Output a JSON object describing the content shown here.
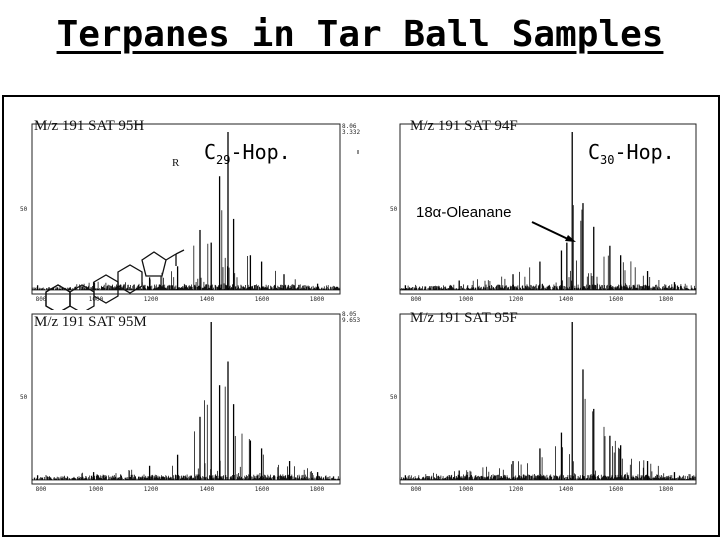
{
  "title": "Terpanes in Tar Ball Samples",
  "annotations": {
    "c29_prefix": "C",
    "c29_sub": "29",
    "c29_suffix": "-Hop.",
    "c30_prefix": "C",
    "c30_sub": "30",
    "c30_suffix": "-Hop.",
    "oleanane": "18α-Oleanane",
    "side_group_r": "R"
  },
  "panels": [
    {
      "id": "95H",
      "label": "M/z 191 SAT 95H",
      "y_mark": "50",
      "corner_top": "8.06",
      "corner_bottom": "3.332",
      "x_ticks": [
        "800",
        "1000",
        "1200",
        "1400",
        "1600",
        "1800"
      ]
    },
    {
      "id": "94F",
      "label": "M/z 191 SAT 94F",
      "y_mark": "50",
      "corner_top": "",
      "corner_bottom": "",
      "x_ticks": [
        "800",
        "1000",
        "1200",
        "1400",
        "1600",
        "1800"
      ]
    },
    {
      "id": "95M",
      "label": "M/z 191 SAT 95M",
      "y_mark": "50",
      "corner_top": "8.05",
      "corner_bottom": "9.653",
      "x_ticks": [
        "800",
        "1000",
        "1200",
        "1400",
        "1600",
        "1800"
      ]
    },
    {
      "id": "95F",
      "label": "M/z 191 SAT 95F",
      "y_mark": "50",
      "corner_top": "",
      "corner_bottom": "",
      "x_ticks": [
        "800",
        "1000",
        "1200",
        "1400",
        "1600",
        "1800"
      ]
    }
  ],
  "chart_data": [
    {
      "type": "line",
      "title": "M/z 191 SAT 95H",
      "x": [
        800,
        1000,
        1200,
        1300,
        1380,
        1420,
        1450,
        1480,
        1500,
        1560,
        1600,
        1680,
        1800
      ],
      "y": [
        3,
        5,
        8,
        15,
        38,
        30,
        72,
        100,
        45,
        22,
        18,
        10,
        4
      ],
      "xlim": [
        780,
        1880
      ],
      "ylim": [
        0,
        100
      ],
      "grid": false
    },
    {
      "type": "line",
      "title": "M/z 191 SAT 94F",
      "x": [
        800,
        1000,
        1200,
        1300,
        1380,
        1400,
        1420,
        1460,
        1500,
        1560,
        1600,
        1700,
        1800
      ],
      "y": [
        3,
        6,
        10,
        18,
        25,
        30,
        100,
        55,
        40,
        28,
        22,
        12,
        5
      ],
      "xlim": [
        780,
        1880
      ],
      "ylim": [
        0,
        100
      ],
      "grid": false
    },
    {
      "type": "line",
      "title": "M/z 191 SAT 95M",
      "x": [
        800,
        1000,
        1200,
        1300,
        1380,
        1420,
        1450,
        1480,
        1500,
        1560,
        1600,
        1700,
        1800
      ],
      "y": [
        3,
        5,
        9,
        16,
        40,
        100,
        60,
        75,
        48,
        25,
        20,
        12,
        5
      ],
      "xlim": [
        780,
        1880
      ],
      "ylim": [
        0,
        100
      ],
      "grid": false
    },
    {
      "type": "line",
      "title": "M/z 191 SAT 95F",
      "x": [
        800,
        1000,
        1200,
        1300,
        1380,
        1420,
        1460,
        1500,
        1560,
        1600,
        1700,
        1800
      ],
      "y": [
        3,
        6,
        12,
        20,
        30,
        100,
        70,
        45,
        28,
        22,
        12,
        5
      ],
      "xlim": [
        780,
        1880
      ],
      "ylim": [
        0,
        100
      ],
      "grid": false
    }
  ]
}
